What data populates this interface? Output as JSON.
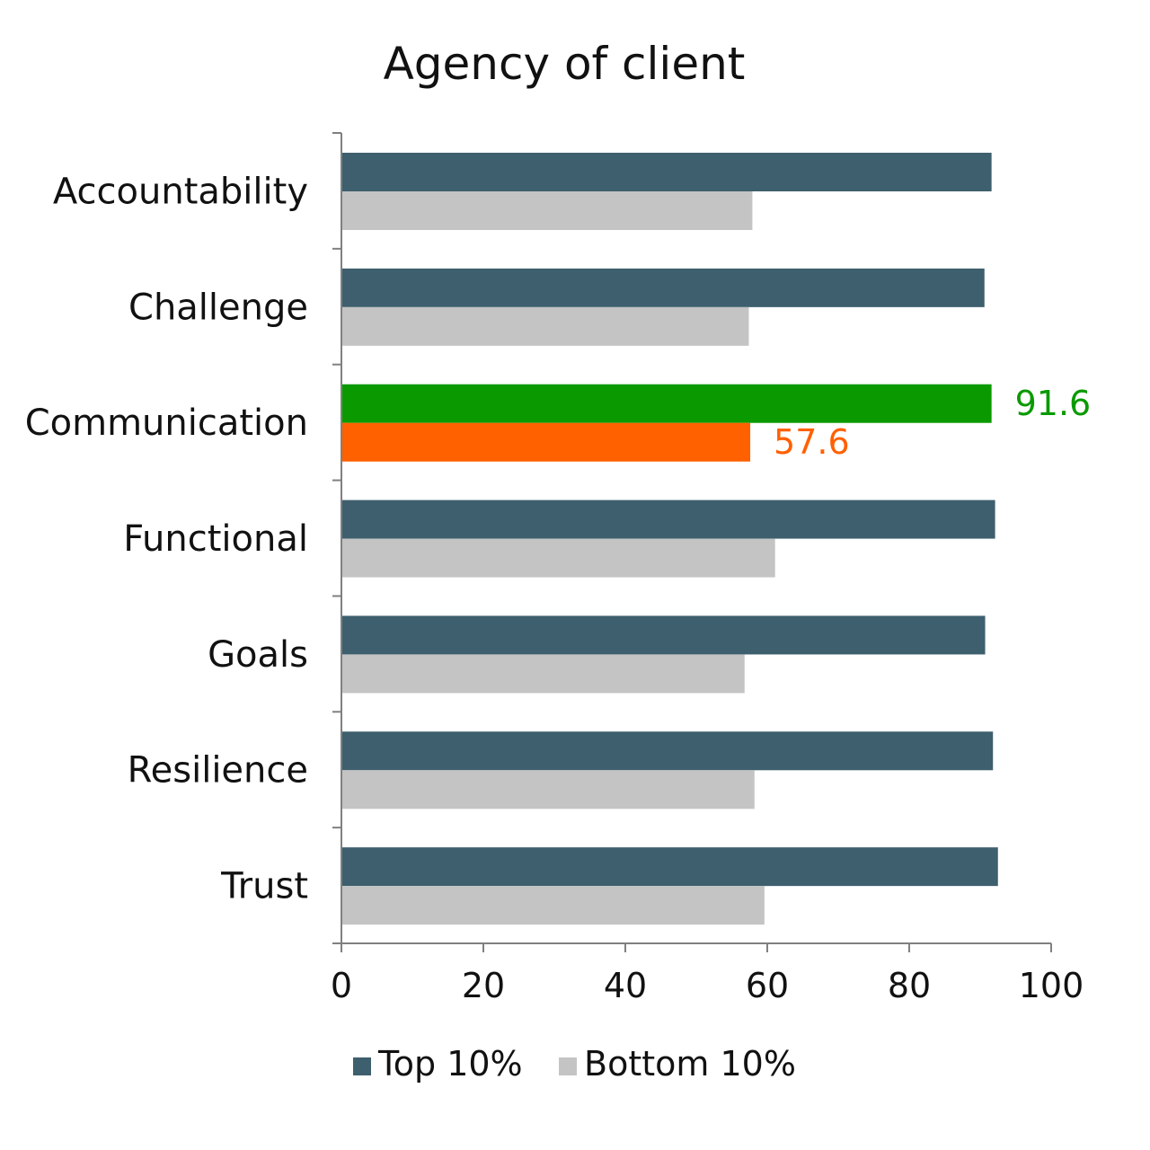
{
  "chart_data": {
    "type": "bar",
    "orientation": "horizontal",
    "title": "Agency of client",
    "categories": [
      "Accountability",
      "Challenge",
      "Communication",
      "Functional",
      "Goals",
      "Resilience",
      "Trust"
    ],
    "series": [
      {
        "name": "Top 10%",
        "color": "#3e5f6d",
        "values": [
          91.6,
          90.6,
          91.6,
          92.1,
          90.7,
          91.8,
          92.5
        ]
      },
      {
        "name": "Bottom 10%",
        "color": "#c4c4c4",
        "values": [
          57.9,
          57.4,
          57.6,
          61.1,
          56.8,
          58.2,
          59.6
        ]
      }
    ],
    "highlight": {
      "category": "Communication",
      "colors": [
        "#0a9a00",
        "#ff6000"
      ],
      "labels": [
        "91.6",
        "57.6"
      ]
    },
    "xlim": [
      0,
      100
    ],
    "xticks": [
      "0",
      "20",
      "40",
      "60",
      "80",
      "100"
    ],
    "legend": {
      "position": "bottom"
    },
    "grid": false
  }
}
